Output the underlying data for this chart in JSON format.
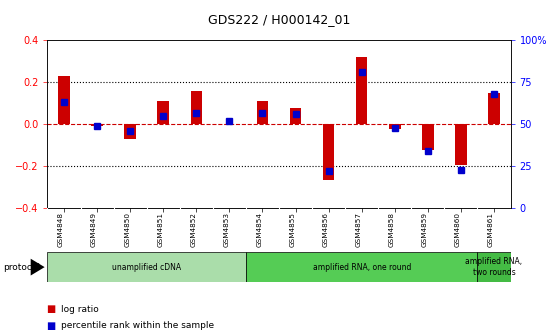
{
  "title": "GDS222 / H000142_01",
  "samples": [
    "GSM4848",
    "GSM4849",
    "GSM4850",
    "GSM4851",
    "GSM4852",
    "GSM4853",
    "GSM4854",
    "GSM4855",
    "GSM4856",
    "GSM4857",
    "GSM4858",
    "GSM4859",
    "GSM4860",
    "GSM4861"
  ],
  "log_ratio": [
    0.23,
    -0.01,
    -0.07,
    0.11,
    0.16,
    0.0,
    0.11,
    0.08,
    -0.265,
    0.32,
    -0.02,
    -0.12,
    -0.195,
    0.15
  ],
  "percentile": [
    63,
    49,
    46,
    55,
    57,
    52,
    57,
    56,
    22,
    81,
    48,
    34,
    23,
    68
  ],
  "ylim_left": [
    -0.4,
    0.4
  ],
  "ylim_right": [
    0,
    100
  ],
  "yticks_left": [
    -0.4,
    -0.2,
    0.0,
    0.2,
    0.4
  ],
  "yticks_right": [
    0,
    25,
    50,
    75,
    100
  ],
  "ytick_labels_right": [
    "0",
    "25",
    "50",
    "75",
    "100%"
  ],
  "bar_color": "#cc0000",
  "dot_color": "#0000cc",
  "hline_color": "#cc0000",
  "grid_color": "#000000",
  "bg_color": "#ffffff",
  "sample_box_color": "#cccccc",
  "protocol_groups": [
    {
      "label": "unamplified cDNA",
      "start": 0,
      "end": 5,
      "color": "#aaddaa"
    },
    {
      "label": "amplified RNA, one round",
      "start": 6,
      "end": 12,
      "color": "#55cc55"
    },
    {
      "label": "amplified RNA,\ntwo rounds",
      "start": 13,
      "end": 13,
      "color": "#44bb44"
    }
  ],
  "legend_items": [
    {
      "label": "log ratio",
      "color": "#cc0000"
    },
    {
      "label": "percentile rank within the sample",
      "color": "#0000cc"
    }
  ],
  "bar_width": 0.35,
  "dot_size": 5
}
